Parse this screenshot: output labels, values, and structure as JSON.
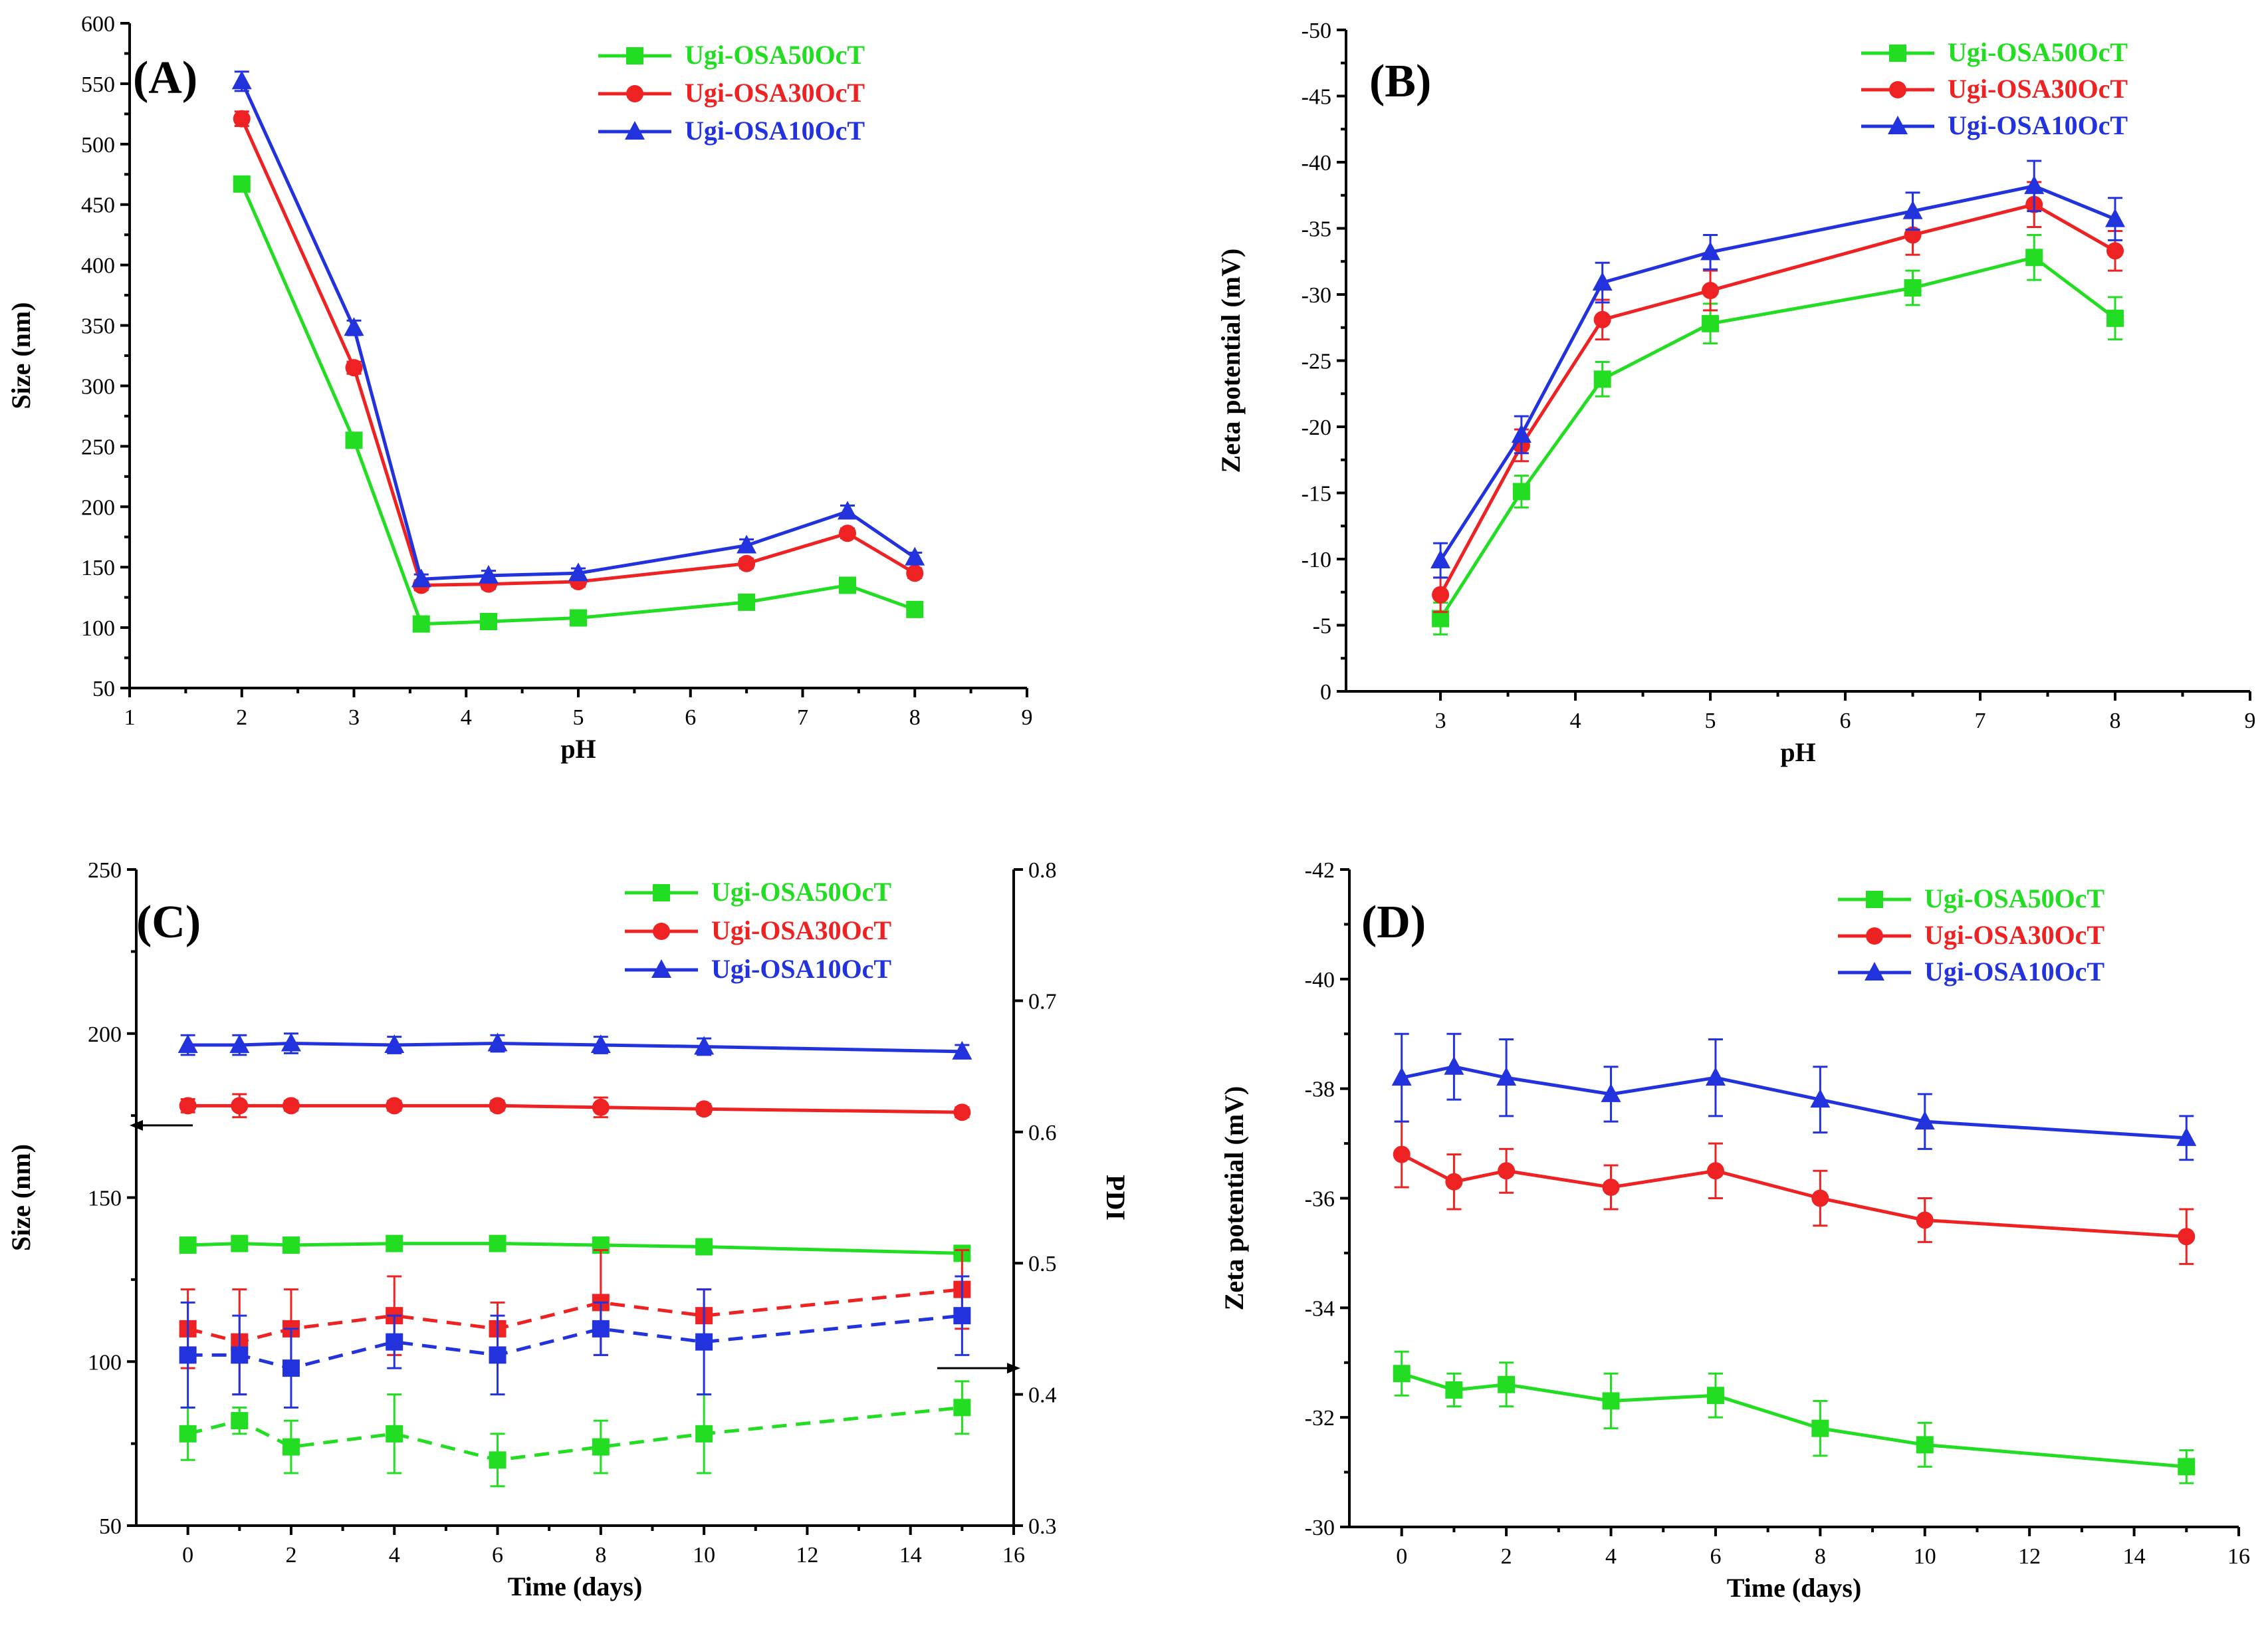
{
  "chart_data": [
    {
      "panel": "(A)",
      "type": "line",
      "xlabel": "pH",
      "ylabel": "Size (nm)",
      "xlim": [
        1,
        9
      ],
      "ylim": [
        50,
        600
      ],
      "xticks": [
        1,
        2,
        3,
        4,
        5,
        6,
        7,
        8,
        9
      ],
      "yticks": [
        50,
        100,
        150,
        200,
        250,
        300,
        350,
        400,
        450,
        500,
        550,
        600
      ],
      "legend_position": "top-right",
      "series": [
        {
          "name": "Ugi-OSA50OcT",
          "color": "#22dd22",
          "marker": "square",
          "x": [
            2,
            3,
            3.6,
            4.2,
            5,
            6.5,
            7.4,
            8
          ],
          "y": [
            467,
            255,
            103,
            105,
            108,
            121,
            135,
            115
          ],
          "err": [
            4,
            4,
            4,
            4,
            4,
            4,
            4,
            4
          ]
        },
        {
          "name": "Ugi-OSA30OcT",
          "color": "#ee2222",
          "marker": "circle",
          "x": [
            2,
            3,
            3.6,
            4.2,
            5,
            6.5,
            7.4,
            8
          ],
          "y": [
            521,
            315,
            135,
            136,
            138,
            153,
            178,
            145
          ],
          "err": [
            6,
            5,
            4,
            4,
            4,
            4,
            4,
            4
          ]
        },
        {
          "name": "Ugi-OSA10OcT",
          "color": "#2233dd",
          "marker": "triangle",
          "x": [
            2,
            3,
            3.6,
            4.2,
            5,
            6.5,
            7.4,
            8
          ],
          "y": [
            552,
            348,
            140,
            143,
            145,
            168,
            196,
            158
          ],
          "err": [
            8,
            6,
            4,
            4,
            4,
            5,
            5,
            4
          ]
        }
      ]
    },
    {
      "panel": "(B)",
      "type": "line",
      "xlabel": "pH",
      "ylabel": "Zeta potential (mV)",
      "xlim": [
        2.3,
        9
      ],
      "ylim": [
        0,
        -50
      ],
      "xticks": [
        3,
        4,
        5,
        6,
        7,
        8,
        9
      ],
      "yticks": [
        0,
        -5,
        -10,
        -15,
        -20,
        -25,
        -30,
        -35,
        -40,
        -45,
        -50
      ],
      "legend_position": "top-right",
      "series": [
        {
          "name": "Ugi-OSA50OcT",
          "color": "#22dd22",
          "marker": "square",
          "x": [
            3,
            3.6,
            4.2,
            5,
            6.5,
            7.4,
            8
          ],
          "y": [
            -5.5,
            -15.1,
            -23.6,
            -27.8,
            -30.5,
            -32.8,
            -28.2
          ],
          "err": [
            1.2,
            1.2,
            1.3,
            1.5,
            1.3,
            1.7,
            1.6
          ]
        },
        {
          "name": "Ugi-OSA30OcT",
          "color": "#ee2222",
          "marker": "circle",
          "x": [
            3,
            3.6,
            4.2,
            5,
            6.5,
            7.4,
            8
          ],
          "y": [
            -7.3,
            -18.6,
            -28.1,
            -30.3,
            -34.5,
            -36.8,
            -33.3
          ],
          "err": [
            1.3,
            1.2,
            1.5,
            1.5,
            1.5,
            1.7,
            1.5
          ]
        },
        {
          "name": "Ugi-OSA10OcT",
          "color": "#2233dd",
          "marker": "triangle",
          "x": [
            3,
            3.6,
            4.2,
            5,
            6.5,
            7.4,
            8
          ],
          "y": [
            -9.9,
            -19.4,
            -30.9,
            -33.2,
            -36.3,
            -38.2,
            -35.7
          ],
          "err": [
            1.3,
            1.4,
            1.5,
            1.3,
            1.4,
            1.9,
            1.6
          ]
        }
      ]
    },
    {
      "panel": "(C)",
      "type": "line",
      "xlabel": "Time (days)",
      "ylabel": "Size (nm)",
      "y2label": "PDI",
      "xlim": [
        -1,
        16
      ],
      "ylim": [
        50,
        250
      ],
      "y2lim": [
        0.3,
        0.8
      ],
      "xticks": [
        0,
        2,
        4,
        6,
        8,
        10,
        12,
        14,
        16
      ],
      "yticks": [
        50,
        100,
        150,
        200,
        250
      ],
      "y2ticks": [
        0.3,
        0.4,
        0.5,
        0.6,
        0.7,
        0.8
      ],
      "legend_position": "top-right",
      "series": [
        {
          "name": "Ugi-OSA50OcT",
          "color": "#22dd22",
          "marker": "square",
          "axis": "left",
          "x": [
            0,
            1,
            2,
            4,
            6,
            8,
            10,
            15
          ],
          "y": [
            135.5,
            136,
            135.5,
            136,
            136,
            135.5,
            135,
            133
          ],
          "err": [
            1,
            1,
            1,
            1,
            1,
            1,
            1,
            1
          ]
        },
        {
          "name": "Ugi-OSA30OcT",
          "color": "#ee2222",
          "marker": "circle",
          "axis": "left",
          "x": [
            0,
            1,
            2,
            4,
            6,
            8,
            10,
            15
          ],
          "y": [
            178,
            178,
            178,
            178,
            178,
            177.5,
            177,
            176
          ],
          "err": [
            2,
            3.5,
            1.5,
            1.5,
            1.5,
            3,
            1.5,
            1.5
          ]
        },
        {
          "name": "Ugi-OSA10OcT",
          "color": "#2233dd",
          "marker": "triangle",
          "axis": "left",
          "x": [
            0,
            1,
            2,
            4,
            6,
            8,
            10,
            15
          ],
          "y": [
            196.5,
            196.5,
            197,
            196.5,
            197,
            196.5,
            196,
            194.5
          ],
          "err": [
            3,
            3,
            3,
            2.5,
            2.5,
            2.5,
            2.5,
            2
          ]
        },
        {
          "name": "Ugi-OSA50OcT PDI",
          "color": "#22dd22",
          "marker": "square",
          "axis": "right",
          "dashed": true,
          "x": [
            0,
            1,
            2,
            4,
            6,
            8,
            10,
            15
          ],
          "y": [
            0.37,
            0.38,
            0.36,
            0.37,
            0.35,
            0.36,
            0.37,
            0.39
          ],
          "err": [
            0.02,
            0.01,
            0.02,
            0.03,
            0.02,
            0.02,
            0.03,
            0.02
          ]
        },
        {
          "name": "Ugi-OSA30OcT PDI",
          "color": "#ee2222",
          "marker": "square",
          "axis": "right",
          "dashed": true,
          "x": [
            0,
            1,
            2,
            4,
            6,
            8,
            10,
            15
          ],
          "y": [
            0.45,
            0.44,
            0.45,
            0.46,
            0.45,
            0.47,
            0.46,
            0.48
          ],
          "err": [
            0.03,
            0.04,
            0.03,
            0.03,
            0.02,
            0.04,
            0.02,
            0.03
          ]
        },
        {
          "name": "Ugi-OSA10OcT PDI",
          "color": "#2233dd",
          "marker": "square",
          "axis": "right",
          "dashed": true,
          "x": [
            0,
            1,
            2,
            4,
            6,
            8,
            10,
            15
          ],
          "y": [
            0.43,
            0.43,
            0.42,
            0.44,
            0.43,
            0.45,
            0.44,
            0.46
          ],
          "err": [
            0.04,
            0.03,
            0.03,
            0.02,
            0.03,
            0.02,
            0.04,
            0.03
          ]
        }
      ],
      "annotations": [
        "left-arrow: Size axis",
        "right-arrow: PDI axis"
      ]
    },
    {
      "panel": "(D)",
      "type": "line",
      "xlabel": "Time (days)",
      "ylabel": "Zeta potential (mV)",
      "xlim": [
        -1,
        16
      ],
      "ylim": [
        -30,
        -42
      ],
      "xticks": [
        0,
        2,
        4,
        6,
        8,
        10,
        12,
        14,
        16
      ],
      "yticks": [
        -30,
        -32,
        -34,
        -36,
        -38,
        -40,
        -42
      ],
      "legend_position": "top-right",
      "series": [
        {
          "name": "Ugi-OSA50OcT",
          "color": "#22dd22",
          "marker": "square",
          "x": [
            0,
            1,
            2,
            4,
            6,
            8,
            10,
            15
          ],
          "y": [
            -32.8,
            -32.5,
            -32.6,
            -32.3,
            -32.4,
            -31.8,
            -31.5,
            -31.1
          ],
          "err": [
            0.4,
            0.3,
            0.4,
            0.5,
            0.4,
            0.5,
            0.4,
            0.3
          ]
        },
        {
          "name": "Ugi-OSA30OcT",
          "color": "#ee2222",
          "marker": "circle",
          "x": [
            0,
            1,
            2,
            4,
            6,
            8,
            10,
            15
          ],
          "y": [
            -36.8,
            -36.3,
            -36.5,
            -36.2,
            -36.5,
            -36,
            -35.6,
            -35.3
          ],
          "err": [
            0.6,
            0.5,
            0.4,
            0.4,
            0.5,
            0.5,
            0.4,
            0.5
          ]
        },
        {
          "name": "Ugi-OSA10OcT",
          "color": "#2233dd",
          "marker": "triangle",
          "x": [
            0,
            1,
            2,
            4,
            6,
            8,
            10,
            15
          ],
          "y": [
            -38.2,
            -38.4,
            -38.2,
            -37.9,
            -38.2,
            -37.8,
            -37.4,
            -37.1
          ],
          "err": [
            0.8,
            0.6,
            0.7,
            0.5,
            0.7,
            0.6,
            0.5,
            0.4
          ]
        }
      ]
    }
  ]
}
